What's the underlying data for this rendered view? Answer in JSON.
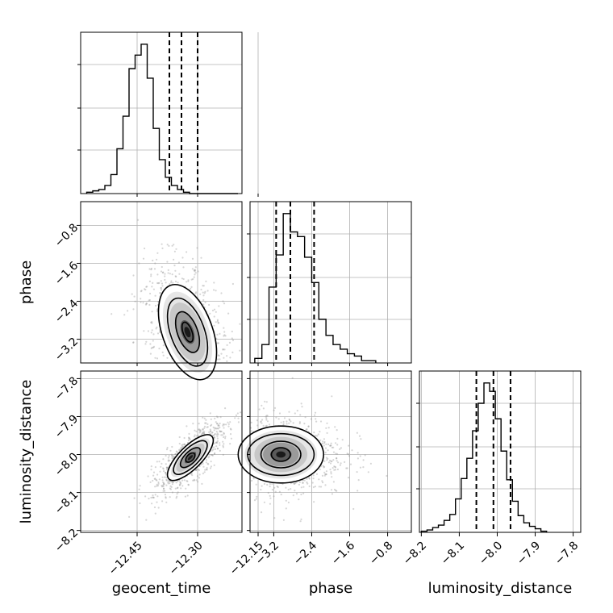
{
  "chart_data": {
    "type": "corner",
    "parameters": [
      "geocent_time",
      "phase",
      "luminosity_distance"
    ],
    "labels": {
      "geocent_time": "geocent_time",
      "phase": "phase",
      "luminosity_distance": "luminosity_distance"
    },
    "ranges": {
      "geocent_time": [
        -12.59,
        -12.19
      ],
      "phase": [
        -3.7,
        -0.3
      ],
      "luminosity_distance": [
        -8.205,
        -7.78
      ]
    },
    "ticks": {
      "geocent_time": [
        {
          "value": -12.45,
          "label": "−12.45"
        },
        {
          "value": -12.3,
          "label": "−12.30"
        },
        {
          "value": -12.15,
          "label": "−12.15"
        }
      ],
      "phase": [
        {
          "value": -3.2,
          "label": "−3.2"
        },
        {
          "value": -2.4,
          "label": "−2.4"
        },
        {
          "value": -1.6,
          "label": "−1.6"
        },
        {
          "value": -0.8,
          "label": "−0.8"
        }
      ],
      "luminosity_distance": [
        {
          "value": -8.2,
          "label": "−8.2"
        },
        {
          "value": -8.1,
          "label": "−8.1"
        },
        {
          "value": -8.0,
          "label": "−8.0"
        },
        {
          "value": -7.9,
          "label": "−7.9"
        },
        {
          "value": -7.8,
          "label": "−7.8"
        }
      ]
    },
    "quantiles": {
      "geocent_time": [
        -12.37,
        -12.34,
        -12.3
      ],
      "phase": [
        -3.15,
        -2.85,
        -2.35
      ],
      "luminosity_distance": [
        -8.055,
        -8.01,
        -7.965
      ]
    },
    "histograms": {
      "geocent_time": {
        "edges": [
          -12.575,
          -12.56,
          -12.545,
          -12.53,
          -12.515,
          -12.5,
          -12.485,
          -12.47,
          -12.455,
          -12.44,
          -12.425,
          -12.41,
          -12.395,
          -12.38,
          -12.365,
          -12.35,
          -12.335,
          -12.32,
          -12.305,
          -12.29,
          -12.275,
          -12.26,
          -12.245,
          -12.23,
          -12.215,
          -12.2
        ],
        "counts": [
          1,
          2,
          3,
          6,
          14,
          33,
          57,
          92,
          102,
          110,
          85,
          48,
          25,
          12,
          6,
          3,
          1,
          0,
          0,
          0,
          0,
          0,
          0,
          0,
          0
        ]
      },
      "phase": {
        "edges": [
          -3.6,
          -3.45,
          -3.3,
          -3.15,
          -3.0,
          -2.85,
          -2.7,
          -2.55,
          -2.4,
          -2.25,
          -2.1,
          -1.95,
          -1.8,
          -1.65,
          -1.5,
          -1.35,
          -1.2,
          -1.05
        ],
        "counts": [
          2,
          8,
          33,
          47,
          65,
          57,
          55,
          46,
          35,
          19,
          12,
          8,
          6,
          4,
          3,
          1,
          1
        ]
      },
      "luminosity_distance": {
        "edges": [
          -8.2,
          -8.185,
          -8.17,
          -8.155,
          -8.14,
          -8.125,
          -8.11,
          -8.095,
          -8.08,
          -8.065,
          -8.05,
          -8.035,
          -8.02,
          -8.005,
          -7.99,
          -7.975,
          -7.96,
          -7.945,
          -7.93,
          -7.915,
          -7.9,
          -7.885,
          -7.87
        ],
        "counts": [
          1,
          2,
          4,
          6,
          10,
          15,
          28,
          45,
          62,
          85,
          108,
          125,
          118,
          95,
          68,
          44,
          26,
          14,
          8,
          5,
          3,
          1
        ]
      }
    },
    "contours": {
      "phase_vs_geocent_time": {
        "center": [
          -12.325,
          -3.05
        ],
        "levels": [
          {
            "a": 0.011,
            "b": 0.22,
            "tilt_deg": 20
          },
          {
            "a": 0.025,
            "b": 0.45,
            "tilt_deg": 20
          },
          {
            "a": 0.042,
            "b": 0.75,
            "tilt_deg": 20
          },
          {
            "a": 0.062,
            "b": 1.05,
            "tilt_deg": 20
          }
        ]
      },
      "luminosity_distance_vs_geocent_time": {
        "center": [
          -12.318,
          -8.008
        ],
        "levels": [
          {
            "a": 0.014,
            "b": 0.009,
            "tilt_deg": 45
          },
          {
            "a": 0.032,
            "b": 0.015,
            "tilt_deg": 45
          },
          {
            "a": 0.055,
            "b": 0.023,
            "tilt_deg": 45
          },
          {
            "a": 0.075,
            "b": 0.03,
            "tilt_deg": 45
          }
        ]
      },
      "luminosity_distance_vs_phase": {
        "center": [
          -3.05,
          -8.0
        ],
        "levels": [
          {
            "a": 0.2,
            "b": 0.018,
            "tilt_deg": 0
          },
          {
            "a": 0.42,
            "b": 0.035,
            "tilt_deg": 0
          },
          {
            "a": 0.7,
            "b": 0.055,
            "tilt_deg": 0
          },
          {
            "a": 0.9,
            "b": 0.075,
            "tilt_deg": 0
          }
        ]
      }
    },
    "grid": true,
    "colors": {
      "line": "#000000",
      "grid": "#b0b0b0",
      "scatter": "#8a8a8a"
    }
  }
}
